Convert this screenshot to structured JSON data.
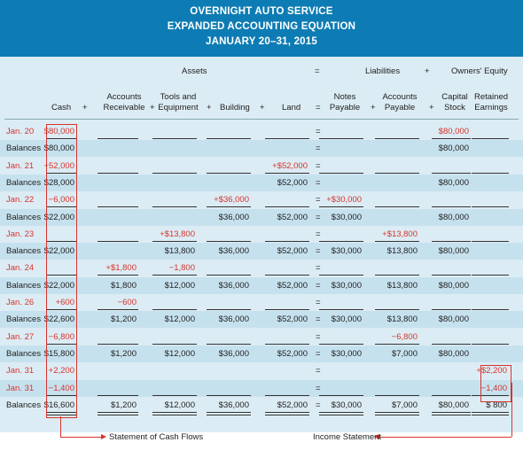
{
  "title": {
    "line1": "OVERNIGHT AUTO SERVICE",
    "line2": "EXPANDED ACCOUNTING EQUATION",
    "line3": "JANUARY 20–31, 2015"
  },
  "groups": {
    "assets": "Assets",
    "eq": "=",
    "liabilities": "Liabilities",
    "plus": "+",
    "owners_equity": "Owners' Equity"
  },
  "columns": {
    "cash": "Cash",
    "ar1": "Accounts",
    "ar2": "Receivable",
    "te1": "Tools and",
    "te2": "Equipment",
    "building": "Building",
    "land": "Land",
    "np1": "Notes",
    "np2": "Payable",
    "ap1": "Accounts",
    "ap2": "Payable",
    "cs1": "Capital",
    "cs2": "Stock",
    "re1": "Retained",
    "re2": "Earnings",
    "plus": "+",
    "eq": "="
  },
  "rows": [
    {
      "label": "Jan. 20",
      "type": "txn",
      "cash": "$80,000",
      "ar": "",
      "te": "",
      "bld": "",
      "land": "",
      "np": "",
      "ap": "",
      "cs": "$80,000",
      "re": ""
    },
    {
      "label": "Balances",
      "type": "bal",
      "cash": "$80,000",
      "ar": "",
      "te": "",
      "bld": "",
      "land": "",
      "np": "",
      "ap": "",
      "cs": "$80,000",
      "re": ""
    },
    {
      "label": "Jan. 21",
      "type": "txn",
      "cash": "−52,000",
      "ar": "",
      "te": "",
      "bld": "",
      "land": "+$52,000",
      "np": "",
      "ap": "",
      "cs": "",
      "re": ""
    },
    {
      "label": "Balances",
      "type": "bal",
      "cash": "$28,000",
      "ar": "",
      "te": "",
      "bld": "",
      "land": "$52,000",
      "np": "",
      "ap": "",
      "cs": "$80,000",
      "re": ""
    },
    {
      "label": "Jan. 22",
      "type": "txn",
      "cash": "−6,000",
      "ar": "",
      "te": "",
      "bld": "+$36,000",
      "land": "",
      "np": "+$30,000",
      "ap": "",
      "cs": "",
      "re": ""
    },
    {
      "label": "Balances",
      "type": "bal",
      "cash": "$22,000",
      "ar": "",
      "te": "",
      "bld": "$36,000",
      "land": "$52,000",
      "np": "$30,000",
      "ap": "",
      "cs": "$80,000",
      "re": ""
    },
    {
      "label": "Jan. 23",
      "type": "txn",
      "cash": "",
      "ar": "",
      "te": "+$13,800",
      "bld": "",
      "land": "",
      "np": "",
      "ap": "+$13,800",
      "cs": "",
      "re": ""
    },
    {
      "label": "Balances",
      "type": "bal",
      "cash": "$22,000",
      "ar": "",
      "te": "$13,800",
      "bld": "$36,000",
      "land": "$52,000",
      "np": "$30,000",
      "ap": "$13,800",
      "cs": "$80,000",
      "re": ""
    },
    {
      "label": "Jan. 24",
      "type": "txn",
      "cash": "",
      "ar": "+$1,800",
      "te": "−1,800",
      "bld": "",
      "land": "",
      "np": "",
      "ap": "",
      "cs": "",
      "re": ""
    },
    {
      "label": "Balances",
      "type": "bal",
      "cash": "$22,000",
      "ar": "$1,800",
      "te": "$12,000",
      "bld": "$36,000",
      "land": "$52,000",
      "np": "$30,000",
      "ap": "$13,800",
      "cs": "$80,000",
      "re": ""
    },
    {
      "label": "Jan. 26",
      "type": "txn",
      "cash": "+600",
      "ar": "−600",
      "te": "",
      "bld": "",
      "land": "",
      "np": "",
      "ap": "",
      "cs": "",
      "re": ""
    },
    {
      "label": "Balances",
      "type": "bal",
      "cash": "$22,600",
      "ar": "$1,200",
      "te": "$12,000",
      "bld": "$36,000",
      "land": "$52,000",
      "np": "$30,000",
      "ap": "$13,800",
      "cs": "$80,000",
      "re": ""
    },
    {
      "label": "Jan. 27",
      "type": "txn",
      "cash": "−6,800",
      "ar": "",
      "te": "",
      "bld": "",
      "land": "",
      "np": "",
      "ap": "−6,800",
      "cs": "",
      "re": ""
    },
    {
      "label": "Balances",
      "type": "bal",
      "cash": "$15,800",
      "ar": "$1,200",
      "te": "$12,000",
      "bld": "$36,000",
      "land": "$52,000",
      "np": "$30,000",
      "ap": "$7,000",
      "cs": "$80,000",
      "re": ""
    },
    {
      "label": "Jan. 31",
      "type": "txn",
      "cash": "+2,200",
      "ar": "",
      "te": "",
      "bld": "",
      "land": "",
      "np": "",
      "ap": "",
      "cs": "",
      "re": "+$2,200"
    },
    {
      "label": "Jan. 31",
      "type": "txn",
      "cash": "−1,400",
      "ar": "",
      "te": "",
      "bld": "",
      "land": "",
      "np": "",
      "ap": "",
      "cs": "",
      "re": "−1,400"
    },
    {
      "label": "Balances",
      "type": "bal",
      "cash": "$16,600",
      "ar": "$1,200",
      "te": "$12,000",
      "bld": "$36,000",
      "land": "$52,000",
      "np": "$30,000",
      "ap": "$7,000",
      "cs": "$80,000",
      "re": "$ 800"
    }
  ],
  "eq_sign": "=",
  "footer": {
    "cash_flows": "Statement of Cash Flows",
    "income": "Income Statement"
  }
}
